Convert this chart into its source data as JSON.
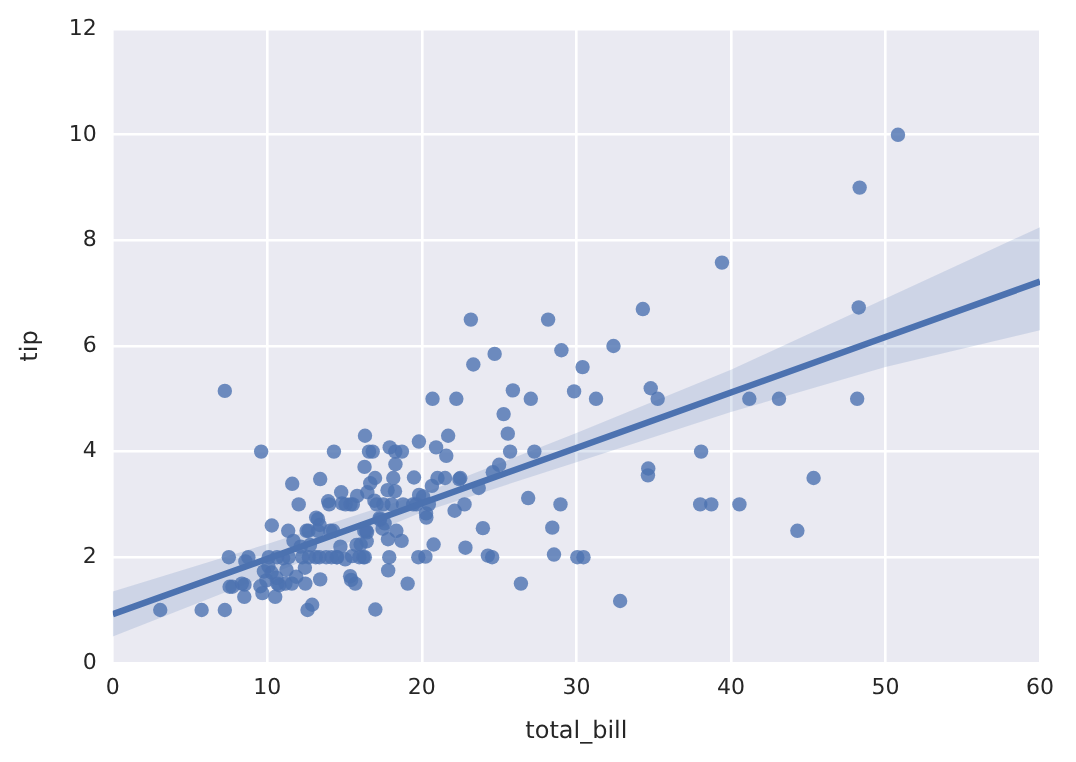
{
  "chart_data": {
    "type": "scatter",
    "xlabel": "total_bill",
    "ylabel": "tip",
    "xlim": [
      0,
      60
    ],
    "ylim": [
      0,
      12
    ],
    "xticks": [
      0,
      10,
      20,
      30,
      40,
      50,
      60
    ],
    "yticks": [
      0,
      2,
      4,
      6,
      8,
      10,
      12
    ],
    "grid": true,
    "legend": false,
    "series": [
      {
        "marker": "circle",
        "color": "#4c72b0",
        "x": [
          50.81,
          48.33,
          48.27,
          48.17,
          39.42,
          34.3,
          32.4,
          28.17,
          23.33,
          44.3,
          45.35,
          41.19,
          40.55,
          38.07,
          38.73,
          38.01,
          43.11,
          32.83,
          35.26,
          34.81,
          34.63,
          34.65,
          31.27,
          30.4,
          30.06,
          30.46,
          29.03,
          29.85,
          28.55,
          28.44,
          28.97,
          27.05,
          26.88,
          27.28,
          25.89,
          25.71,
          25.29,
          24.27,
          24.55,
          24.59,
          24.71,
          26.41,
          25.56,
          25.0,
          23.68,
          23.95,
          23.17,
          22.82,
          22.76,
          22.49,
          22.42,
          22.23,
          22.12,
          21.7,
          21.5,
          21.58,
          21.01,
          20.92,
          20.69,
          20.65,
          20.29,
          20.45,
          20.76,
          20.27,
          20.08,
          20.23,
          19.82,
          19.81,
          19.77,
          19.65,
          19.49,
          19.44,
          19.08,
          18.78,
          18.71,
          18.69,
          18.35,
          18.28,
          18.29,
          18.26,
          18.15,
          18.04,
          17.92,
          17.89,
          17.81,
          17.82,
          17.78,
          17.59,
          17.51,
          17.46,
          17.29,
          17.26,
          17.07,
          16.99,
          16.97,
          16.93,
          16.82,
          16.66,
          16.58,
          16.47,
          16.45,
          16.43,
          16.4,
          16.32,
          16.31,
          16.29,
          16.27,
          16.21,
          16.04,
          15.95,
          15.81,
          15.77,
          15.69,
          15.53,
          15.48,
          15.42,
          15.38,
          15.36,
          15.06,
          15.04,
          14.83,
          14.78,
          14.73,
          14.52,
          14.48,
          14.31,
          14.26,
          14.15,
          14.07,
          14.0,
          13.94,
          13.81,
          13.42,
          13.42,
          13.39,
          13.37,
          13.28,
          13.27,
          13.16,
          13.13,
          12.9,
          12.76,
          12.69,
          12.66,
          12.6,
          12.54,
          12.46,
          12.43,
          12.26,
          12.16,
          12.03,
          11.87,
          11.69,
          11.61,
          11.59,
          11.38,
          11.35,
          11.24,
          11.17,
          11.02,
          10.77,
          10.65,
          10.63,
          10.59,
          10.51,
          10.29,
          10.27,
          10.09,
          10.07,
          9.94,
          9.78,
          9.68,
          9.6,
          9.55,
          8.77,
          8.58,
          8.52,
          8.51,
          8.35,
          7.74,
          7.56,
          7.51,
          7.25,
          7.25,
          5.75,
          3.07
        ],
        "values": [
          10,
          9,
          6.73,
          5,
          7.58,
          6.7,
          6,
          6.5,
          5.65,
          2.5,
          3.5,
          5,
          3,
          4,
          3,
          3,
          5,
          1.17,
          5,
          5.2,
          3.55,
          3.68,
          5,
          5.6,
          2,
          2,
          5.92,
          5.14,
          2.05,
          2.56,
          3,
          5,
          3.12,
          4,
          5.16,
          4,
          4.71,
          2.03,
          2,
          3.61,
          5.85,
          1.5,
          4.34,
          3.75,
          3.31,
          2.55,
          6.5,
          2.18,
          3,
          3.5,
          3.48,
          5,
          2.88,
          4.3,
          3.5,
          3.92,
          3.5,
          4.08,
          5,
          3.35,
          2.75,
          3,
          2.24,
          2.83,
          3.15,
          2.01,
          3.18,
          4.19,
          2,
          3,
          3.51,
          3,
          1.5,
          3,
          4,
          2.31,
          2.5,
          4,
          3.76,
          3.25,
          3.5,
          3,
          4.08,
          2,
          2.34,
          1.75,
          3.27,
          2.64,
          3,
          2.54,
          2.71,
          2.74,
          3,
          1.01,
          3.5,
          3.07,
          4,
          3.4,
          4,
          3.23,
          2.47,
          2.3,
          2.5,
          4.3,
          2,
          3.71,
          2.5,
          2,
          2.24,
          2,
          3.16,
          2.23,
          1.5,
          3,
          2.02,
          1.57,
          3,
          1.64,
          3,
          1.96,
          3.02,
          3.23,
          2.2,
          2,
          2,
          4,
          2.5,
          2,
          2.5,
          3,
          3.06,
          2,
          3.48,
          1.58,
          2.61,
          2,
          2.72,
          2.5,
          2.75,
          2,
          1.1,
          2.23,
          2,
          2.5,
          1,
          2.5,
          1.5,
          1.8,
          2,
          2.2,
          3,
          1.63,
          2.31,
          3.39,
          1.5,
          2,
          2.5,
          1.76,
          1.5,
          1.98,
          1.47,
          1.5,
          2,
          1.61,
          1.25,
          2.6,
          1.71,
          2,
          1.83,
          1.56,
          1.73,
          1.32,
          4,
          1.45,
          2,
          1.92,
          1.48,
          1.25,
          1.5,
          1.44,
          1.44,
          2,
          5.15,
          1,
          1,
          1
        ]
      },
      {
        "type": "line",
        "color": "#4c72b0",
        "x": [
          0,
          10,
          20,
          30,
          40,
          50,
          60
        ],
        "values": [
          0.92,
          1.97,
          3.02,
          4.07,
          5.12,
          6.17,
          7.22
        ],
        "lower": [
          0.5,
          1.65,
          2.85,
          3.8,
          4.75,
          5.6,
          6.3
        ],
        "upper": [
          1.35,
          2.25,
          3.2,
          4.35,
          5.55,
          6.9,
          8.25
        ]
      }
    ]
  }
}
